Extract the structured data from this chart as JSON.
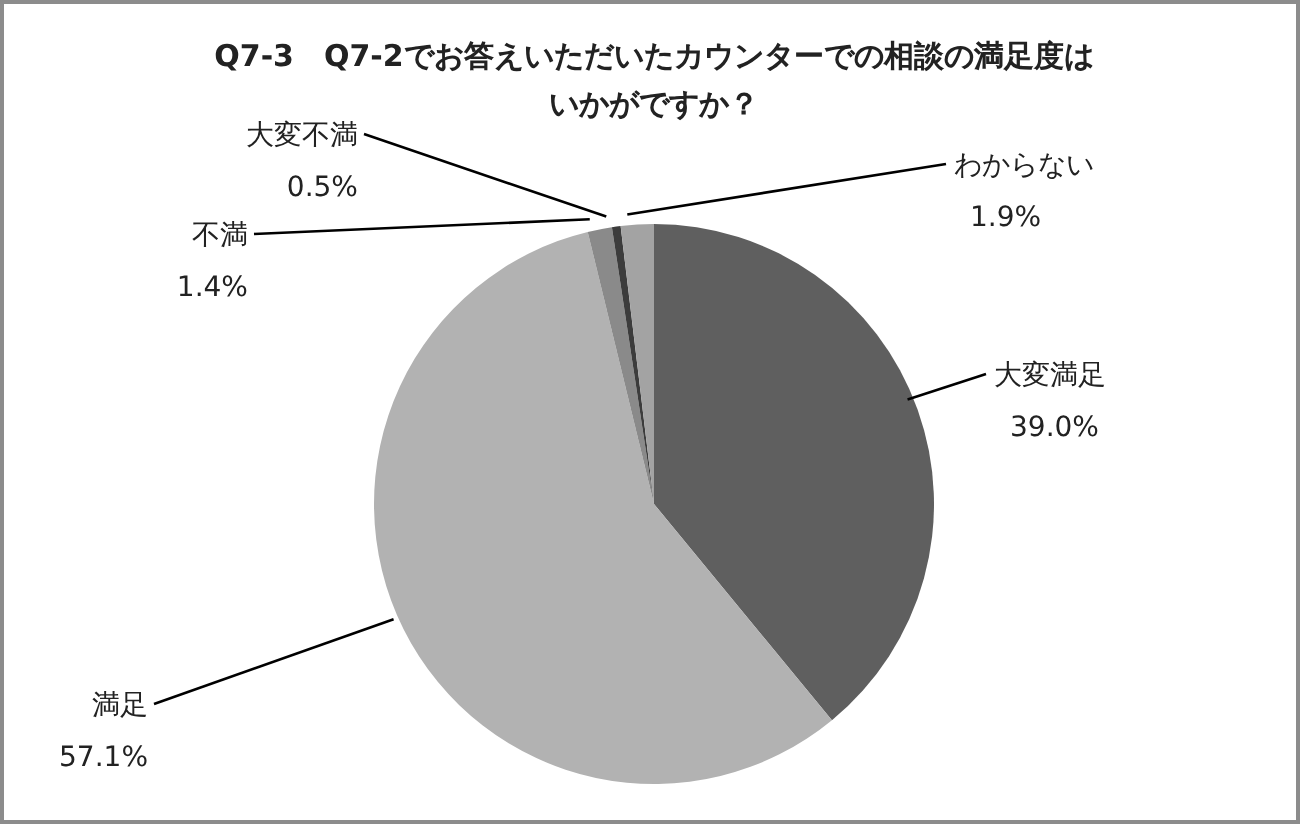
{
  "chart_data": {
    "type": "pie",
    "title": "Q7-3　Q7-2でお答えいただいたカウンターでの相談の満足度はいかがですか？",
    "categories": [
      "大変満足",
      "満足",
      "不満",
      "大変不満",
      "わからない"
    ],
    "values": [
      39.0,
      57.1,
      1.4,
      0.5,
      1.9
    ],
    "value_labels": [
      "39.0%",
      "57.1%",
      "1.4%",
      "0.5%",
      "1.9%"
    ],
    "colors": [
      "#5f5f5f",
      "#b2b2b2",
      "#8a8a8a",
      "#3c3c3c",
      "#a3a3a3"
    ],
    "legend": false
  }
}
